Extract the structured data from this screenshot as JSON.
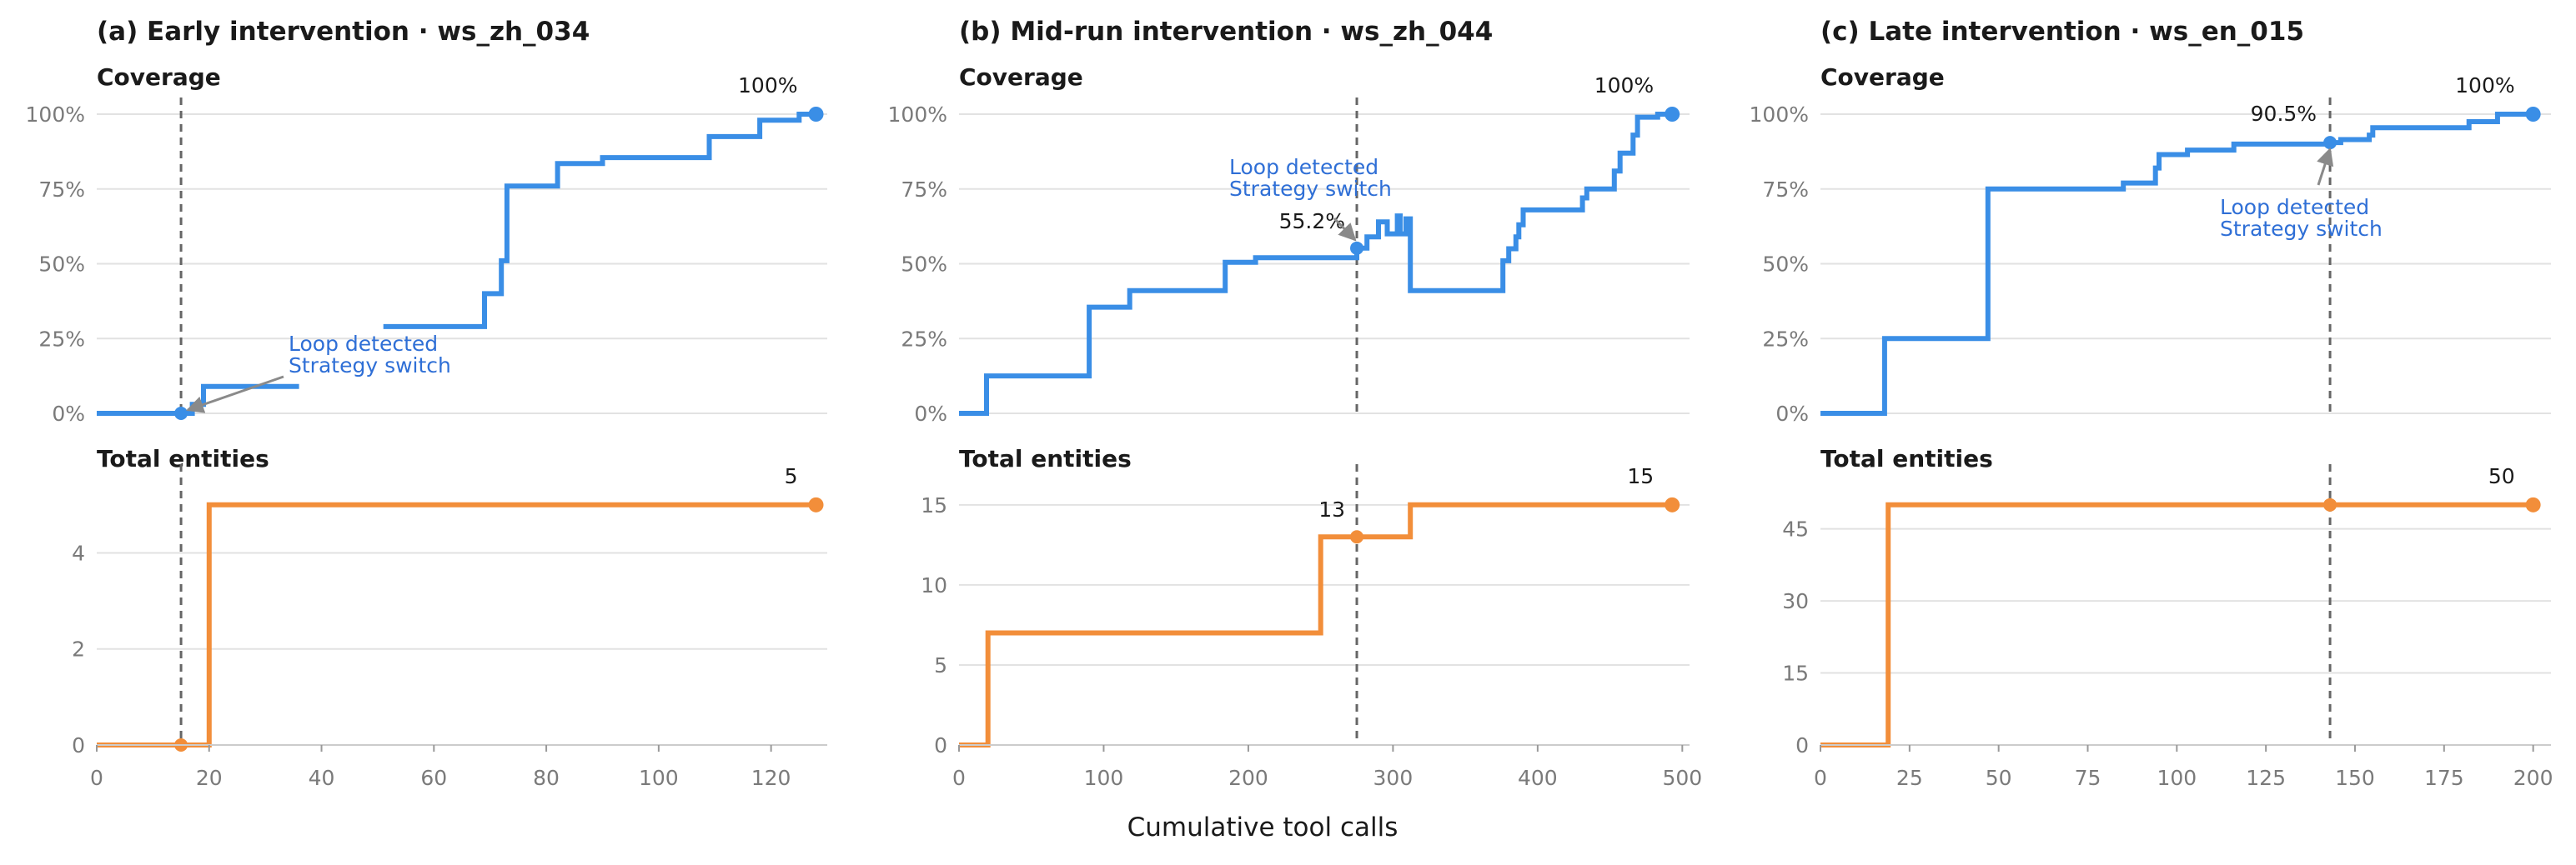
{
  "figure": {
    "xlabel": "Cumulative tool calls",
    "colors": {
      "coverage": "#3a8ee6",
      "entities": "#f28e3a",
      "annotation": "#2f6fd6",
      "marker_line": "#666666",
      "grid": "#e2e2e2"
    }
  },
  "chart_data": [
    {
      "type": "line",
      "title": "(a) Early intervention  ·  ws_zh_034",
      "intervention_x": 15,
      "annotation": {
        "lines": [
          "Loop detected",
          "Strategy switch"
        ]
      },
      "coverage": {
        "label": "Coverage",
        "xlim": [
          0,
          130
        ],
        "ylim": [
          0,
          100
        ],
        "yticks": [
          "0%",
          "25%",
          "50%",
          "75%",
          "100%"
        ],
        "ytick_values": [
          0,
          25,
          50,
          75,
          100
        ],
        "intervention_y": 0,
        "end_label": "100%",
        "segments": [
          [
            [
              0,
              0
            ],
            [
              17,
              0
            ],
            [
              17,
              3
            ],
            [
              19,
              3
            ],
            [
              19,
              9
            ],
            [
              36,
              9
            ]
          ],
          [
            [
              51,
              29
            ],
            [
              69,
              29
            ],
            [
              69,
              40
            ],
            [
              72,
              40
            ],
            [
              72,
              51
            ],
            [
              73,
              51
            ],
            [
              73,
              76
            ],
            [
              82,
              76
            ],
            [
              82,
              83.5
            ],
            [
              90,
              83.5
            ],
            [
              90,
              85.5
            ],
            [
              109,
              85.5
            ],
            [
              109,
              92.5
            ],
            [
              118,
              92.5
            ],
            [
              118,
              98
            ],
            [
              125,
              98
            ],
            [
              125,
              100
            ],
            [
              128,
              100
            ]
          ]
        ]
      },
      "entities": {
        "label": "Total entities",
        "xlim": [
          0,
          130
        ],
        "ylim": [
          0,
          5.5
        ],
        "yticks": [
          "0",
          "2",
          "4"
        ],
        "ytick_values": [
          0,
          2,
          4
        ],
        "intervention_y": 0,
        "end_label": "5",
        "x": [
          0,
          20,
          20,
          128
        ],
        "y": [
          0,
          0,
          5,
          5
        ]
      },
      "xticks": [
        "0",
        "20",
        "40",
        "60",
        "80",
        "100",
        "120"
      ],
      "xtick_values": [
        0,
        20,
        40,
        60,
        80,
        100,
        120
      ]
    },
    {
      "type": "line",
      "title": "(b) Mid-run intervention  ·  ws_zh_044",
      "intervention_x": 275,
      "annotation": {
        "lines": [
          "Loop detected",
          "Strategy switch"
        ]
      },
      "coverage": {
        "label": "Coverage",
        "xlim": [
          0,
          505
        ],
        "ylim": [
          0,
          100
        ],
        "yticks": [
          "0%",
          "25%",
          "50%",
          "75%",
          "100%"
        ],
        "ytick_values": [
          0,
          25,
          50,
          75,
          100
        ],
        "intervention_y": 55.2,
        "intervention_label": "55.2%",
        "end_label": "100%",
        "segments": [
          [
            [
              0,
              0
            ],
            [
              19,
              0
            ],
            [
              19,
              12.5
            ],
            [
              90,
              12.5
            ],
            [
              90,
              35.5
            ],
            [
              118,
              35.5
            ],
            [
              118,
              41
            ],
            [
              184,
              41
            ],
            [
              184,
              50.5
            ],
            [
              205,
              50.5
            ],
            [
              205,
              52
            ],
            [
              275,
              52
            ],
            [
              275,
              55.2
            ],
            [
              282,
              55.2
            ],
            [
              282,
              59
            ],
            [
              290,
              59
            ],
            [
              290,
              64
            ],
            [
              296,
              64
            ],
            [
              296,
              60
            ],
            [
              303,
              60
            ],
            [
              303,
              66
            ],
            [
              305,
              66
            ],
            [
              305,
              60
            ],
            [
              309,
              60
            ],
            [
              309,
              65
            ],
            [
              312,
              65
            ],
            [
              312,
              41
            ],
            [
              376,
              41
            ],
            [
              376,
              51
            ],
            [
              380,
              51
            ],
            [
              380,
              55
            ],
            [
              385,
              55
            ],
            [
              385,
              59
            ],
            [
              387,
              59
            ],
            [
              387,
              63
            ],
            [
              390,
              63
            ],
            [
              390,
              68
            ],
            [
              431,
              68
            ],
            [
              431,
              72
            ],
            [
              434,
              72
            ],
            [
              434,
              75
            ],
            [
              453,
              75
            ],
            [
              453,
              81
            ],
            [
              457,
              81
            ],
            [
              457,
              87
            ],
            [
              466,
              87
            ],
            [
              466,
              93
            ],
            [
              469,
              93
            ],
            [
              469,
              99
            ],
            [
              483,
              99
            ],
            [
              483,
              100
            ],
            [
              493,
              100
            ]
          ]
        ]
      },
      "entities": {
        "label": "Total entities",
        "xlim": [
          0,
          505
        ],
        "ylim": [
          0,
          16.5
        ],
        "yticks": [
          "0",
          "5",
          "10",
          "15"
        ],
        "ytick_values": [
          0,
          5,
          10,
          15
        ],
        "intervention_y": 13,
        "intervention_label": "13",
        "end_label": "15",
        "x": [
          0,
          20,
          20,
          250,
          250,
          312,
          312,
          493
        ],
        "y": [
          0,
          0,
          7,
          7,
          13,
          13,
          15,
          15
        ]
      },
      "xticks": [
        "0",
        "100",
        "200",
        "300",
        "400",
        "500"
      ],
      "xtick_values": [
        0,
        100,
        200,
        300,
        400,
        500
      ]
    },
    {
      "type": "line",
      "title": "(c) Late intervention  ·  ws_en_015",
      "intervention_x": 143,
      "annotation": {
        "lines": [
          "Loop detected",
          "Strategy switch"
        ]
      },
      "coverage": {
        "label": "Coverage",
        "xlim": [
          0,
          205
        ],
        "ylim": [
          0,
          100
        ],
        "yticks": [
          "0%",
          "25%",
          "50%",
          "75%",
          "100%"
        ],
        "ytick_values": [
          0,
          25,
          50,
          75,
          100
        ],
        "intervention_y": 90.5,
        "intervention_label": "90.5%",
        "end_label": "100%",
        "segments": [
          [
            [
              0,
              0
            ],
            [
              18,
              0
            ],
            [
              18,
              25
            ],
            [
              47,
              25
            ],
            [
              47,
              75
            ],
            [
              85,
              75
            ],
            [
              85,
              77
            ],
            [
              94,
              77
            ],
            [
              94,
              82
            ],
            [
              95,
              82
            ],
            [
              95,
              86.5
            ],
            [
              103,
              86.5
            ],
            [
              103,
              88
            ],
            [
              116,
              88
            ],
            [
              116,
              90
            ],
            [
              143,
              90
            ],
            [
              143,
              90.5
            ],
            [
              146,
              90.5
            ],
            [
              146,
              91.5
            ],
            [
              154,
              91.5
            ],
            [
              154,
              93
            ],
            [
              155,
              93
            ],
            [
              155,
              95.5
            ],
            [
              182,
              95.5
            ],
            [
              182,
              97.5
            ],
            [
              190,
              97.5
            ],
            [
              190,
              100
            ],
            [
              200,
              100
            ]
          ]
        ]
      },
      "entities": {
        "label": "Total entities",
        "xlim": [
          0,
          205
        ],
        "ylim": [
          0,
          55
        ],
        "yticks": [
          "0",
          "15",
          "30",
          "45"
        ],
        "ytick_values": [
          0,
          15,
          30,
          45
        ],
        "intervention_y": 50,
        "end_label": "50",
        "x": [
          0,
          19,
          19,
          200
        ],
        "y": [
          0,
          0,
          50,
          50
        ]
      },
      "xticks": [
        "0",
        "25",
        "50",
        "75",
        "100",
        "125",
        "150",
        "175",
        "200"
      ],
      "xtick_values": [
        0,
        25,
        50,
        75,
        100,
        125,
        150,
        175,
        200
      ]
    }
  ]
}
